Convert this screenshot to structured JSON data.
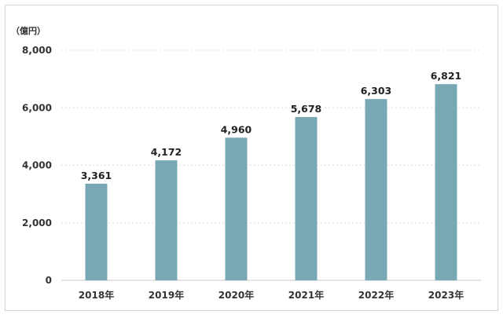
{
  "chart_data": {
    "type": "bar",
    "unit_label": "（億円）",
    "categories": [
      "2018年",
      "2019年",
      "2020年",
      "2021年",
      "2022年",
      "2023年"
    ],
    "values": [
      3361,
      4172,
      4960,
      5678,
      6303,
      6821
    ],
    "data_labels": [
      "3,361",
      "4,172",
      "4,960",
      "5,678",
      "6,303",
      "6,821"
    ],
    "y_ticks": [
      "0",
      "2,000",
      "4,000",
      "6,000",
      "8,000"
    ],
    "ylim": [
      0,
      8000
    ],
    "title": "",
    "xlabel": "",
    "ylabel": "",
    "grid": true,
    "bar_color": "#78a8b4",
    "grid_color": "#dcdcdc"
  }
}
